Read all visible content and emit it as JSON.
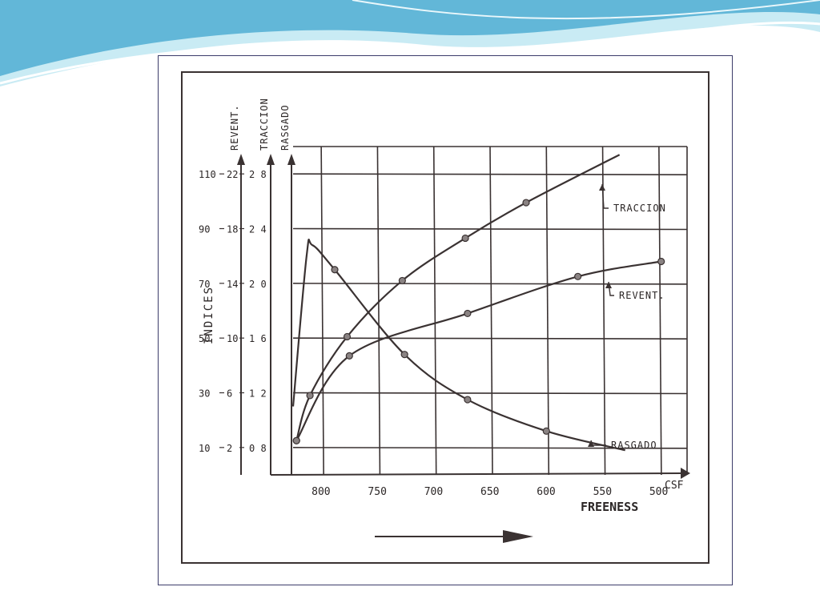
{
  "colors": {
    "ink": "#3a3232",
    "wave_dark": "#5fb4d6",
    "wave_light": "#bfe7f2",
    "frame_border": "#3c3c6a"
  },
  "chart_data": {
    "type": "line",
    "xlabel": "FREENESS",
    "x_unit": "CSF",
    "ylabel": "INDICES",
    "x_ticks": [
      "800",
      "750",
      "700",
      "650",
      "600",
      "550",
      "500"
    ],
    "xlim": [
      825,
      475
    ],
    "axes": [
      {
        "name": "REVENT.",
        "ticks": [
          "10",
          "30",
          "50",
          "70",
          "90",
          "110"
        ],
        "range": [
          0,
          120
        ]
      },
      {
        "name": "TRACCION",
        "ticks": [
          "2",
          "6",
          "10",
          "14",
          "18",
          "22"
        ],
        "range": [
          0,
          24
        ]
      },
      {
        "name": "RASGADO",
        "ticks": [
          "0 8",
          "1 2",
          "1 6",
          "2 0",
          "2 4",
          "2 8"
        ],
        "range": [
          0.6,
          3.0
        ]
      }
    ],
    "grid": true,
    "series": [
      {
        "name": "TRACCION",
        "axis": "TRACCION",
        "x": [
          822,
          810,
          777,
          728,
          672,
          618,
          535
        ],
        "y": [
          2.5,
          5.8,
          10.1,
          14.2,
          17.3,
          19.9,
          23.4
        ]
      },
      {
        "name": "REVENT.",
        "axis": "REVENT.",
        "x": [
          822,
          775,
          670,
          572,
          498
        ],
        "y": [
          12.5,
          43.5,
          59,
          72.5,
          78
        ]
      },
      {
        "name": "RASGADO",
        "axis": "RASGADO",
        "x": [
          825,
          813,
          808,
          788,
          726,
          670,
          600,
          530
        ],
        "y": [
          1.1,
          2.2,
          2.28,
          2.1,
          1.48,
          1.15,
          0.92,
          0.78
        ]
      }
    ],
    "markers": [
      {
        "series": "TRACCION",
        "x": [
          822,
          810,
          777,
          728,
          672,
          618
        ],
        "y": [
          2.5,
          5.8,
          10.1,
          14.2,
          17.3,
          19.9
        ]
      },
      {
        "series": "REVENT.",
        "x": [
          822,
          775,
          670,
          572,
          498
        ],
        "y": [
          12.5,
          43.5,
          59,
          72.5,
          78
        ]
      },
      {
        "series": "RASGADO",
        "x": [
          788,
          726,
          670,
          600
        ],
        "y": [
          2.1,
          1.48,
          1.15,
          0.92
        ]
      }
    ],
    "series_labels": [
      "TRACCION",
      "REVENT.",
      "RASGADO"
    ]
  }
}
